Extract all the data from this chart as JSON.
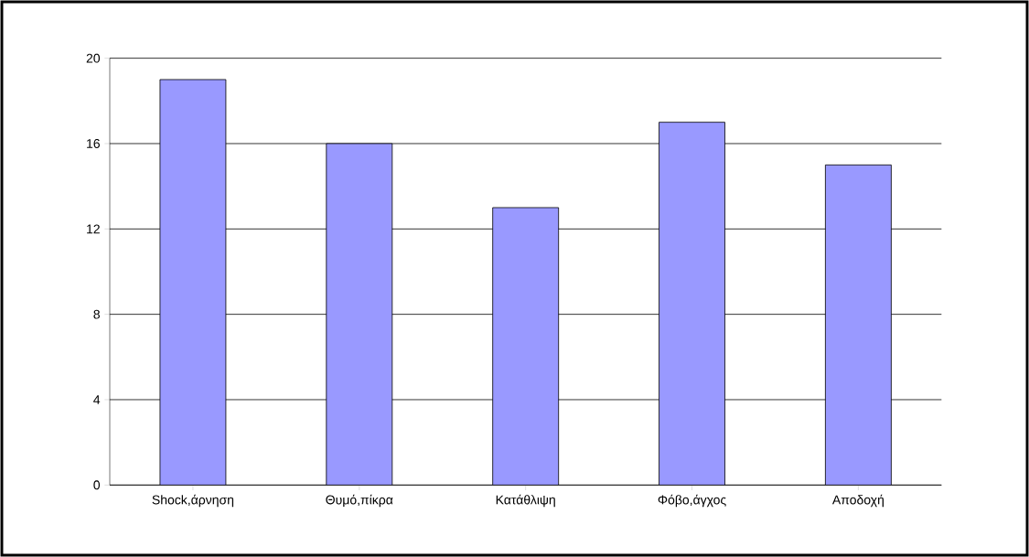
{
  "chart_data": {
    "type": "bar",
    "categories": [
      "Shock,άρνηση",
      "Θυμό,πίκρα",
      "Κατάθλιψη",
      "Φόβο,άγχος",
      "Αποδοχή"
    ],
    "values": [
      19,
      16,
      13,
      17,
      15
    ],
    "color": "#9999ff",
    "ylim": [
      0,
      20
    ],
    "yticks": [
      0,
      4,
      8,
      12,
      16,
      20
    ],
    "grid": "y"
  }
}
